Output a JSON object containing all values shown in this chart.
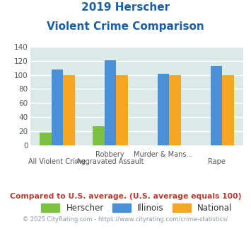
{
  "title_line1": "2019 Herscher",
  "title_line2": "Violent Crime Comparison",
  "herscher": [
    18,
    27,
    0,
    0
  ],
  "illinois": [
    108,
    121,
    102,
    113
  ],
  "national": [
    100,
    100,
    100,
    100
  ],
  "herscher_color": "#7dc142",
  "illinois_color": "#4a90d9",
  "national_color": "#f5a623",
  "ylim": [
    0,
    140
  ],
  "yticks": [
    0,
    20,
    40,
    60,
    80,
    100,
    120,
    140
  ],
  "bg_color": "#dce9e9",
  "grid_color": "#ffffff",
  "title_color": "#1a5fa8",
  "footer_text": "Compared to U.S. average. (U.S. average equals 100)",
  "footer_color": "#c0392b",
  "copyright_text": "© 2025 CityRating.com - https://www.cityrating.com/crime-statistics/",
  "copyright_color": "#8899aa",
  "legend_labels": [
    "Herscher",
    "Illinois",
    "National"
  ],
  "top_labels": [
    "",
    "Robbery",
    "Murder & Mans...",
    ""
  ],
  "bot_labels": [
    "All Violent Crime",
    "Aggravated Assault",
    "",
    "Rape"
  ]
}
